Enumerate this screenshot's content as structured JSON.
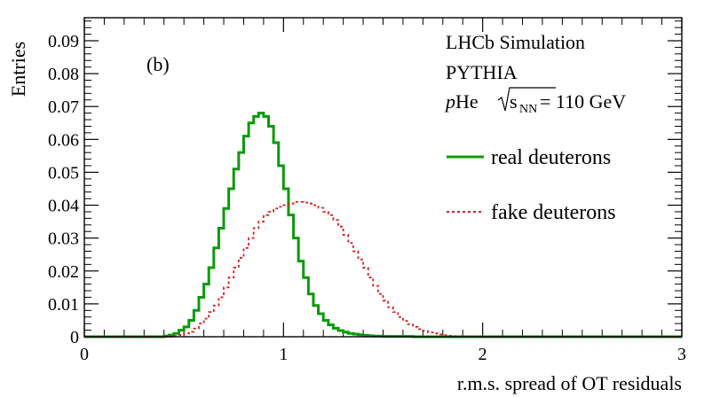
{
  "chart_data": {
    "type": "histogram",
    "panel_label": "(b)",
    "xlabel": "r.m.s. spread of OT residuals",
    "ylabel": "Entries",
    "xlim": [
      0,
      3
    ],
    "ylim": [
      0,
      0.097
    ],
    "x_ticks": [
      0,
      1,
      2,
      3
    ],
    "x_tick_labels": [
      "0",
      "1",
      "2",
      "3"
    ],
    "y_ticks": [
      0,
      0.01,
      0.02,
      0.03,
      0.04,
      0.05,
      0.06,
      0.07,
      0.08,
      0.09
    ],
    "y_tick_labels": [
      "0",
      "0.01",
      "0.02",
      "0.03",
      "0.04",
      "0.05",
      "0.06",
      "0.07",
      "0.08",
      "0.09"
    ],
    "annotations": {
      "experiment": "LHCb Simulation",
      "generator": "PYTHIA",
      "collision_prefix": "p",
      "collision_target": "He ",
      "sqrt_label": "s",
      "sqrt_sub": "NN",
      "energy": " = 110 GeV"
    },
    "bin_width": 0.025,
    "bin_start": 0.4,
    "series": [
      {
        "name": "real deuterons",
        "color": "#0a9a0a",
        "style": "solid",
        "values": [
          0.0002,
          0.0005,
          0.001,
          0.002,
          0.003,
          0.005,
          0.008,
          0.012,
          0.016,
          0.021,
          0.027,
          0.033,
          0.039,
          0.045,
          0.051,
          0.056,
          0.061,
          0.065,
          0.067,
          0.068,
          0.067,
          0.064,
          0.059,
          0.052,
          0.045,
          0.037,
          0.03,
          0.023,
          0.018,
          0.013,
          0.0095,
          0.007,
          0.005,
          0.0036,
          0.0026,
          0.0019,
          0.0014,
          0.001,
          0.0008,
          0.0006,
          0.0004,
          0.0003,
          0.0002,
          0.0002,
          0.0001,
          0.0001,
          0.0001,
          0.0001,
          0.0001,
          0.0001
        ]
      },
      {
        "name": "fake deuterons",
        "color": "#d42020",
        "style": "dashed",
        "values": [
          0,
          0,
          0.0002,
          0.0005,
          0.001,
          0.0015,
          0.0025,
          0.004,
          0.0055,
          0.0075,
          0.0095,
          0.012,
          0.015,
          0.018,
          0.021,
          0.024,
          0.027,
          0.03,
          0.033,
          0.035,
          0.037,
          0.038,
          0.039,
          0.0395,
          0.04,
          0.0405,
          0.041,
          0.041,
          0.0408,
          0.0405,
          0.04,
          0.0392,
          0.038,
          0.037,
          0.0355,
          0.0335,
          0.031,
          0.0285,
          0.026,
          0.0235,
          0.021,
          0.018,
          0.0155,
          0.013,
          0.011,
          0.009,
          0.0075,
          0.006,
          0.0048,
          0.0038,
          0.003,
          0.0023,
          0.0018,
          0.0013,
          0.001,
          0.0007,
          0.0005,
          0.0003,
          0.0002,
          0.0001,
          0.0001,
          0.0001,
          0.0001
        ]
      }
    ]
  }
}
